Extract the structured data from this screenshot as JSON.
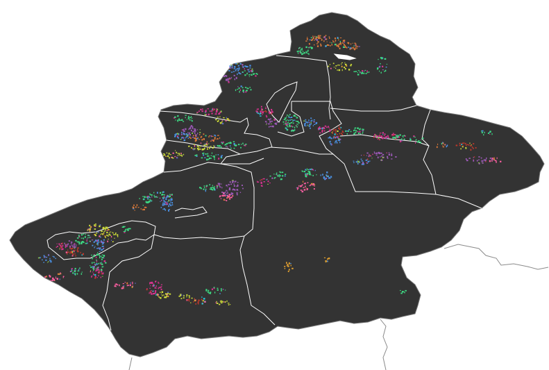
{
  "map": {
    "background": "#ffffff",
    "land_fill": "#333333",
    "boundary_color": "#ffffff",
    "external_border_color": "#8a8a8a",
    "palette": [
      "#e07b39",
      "#3ddc84",
      "#4a90e2",
      "#9b59b6",
      "#d6338f",
      "#8bc34a",
      "#c0392b",
      "#26c6da",
      "#cddc39",
      "#ff5fa2",
      "#5c6bc0",
      "#e0a030"
    ]
  }
}
